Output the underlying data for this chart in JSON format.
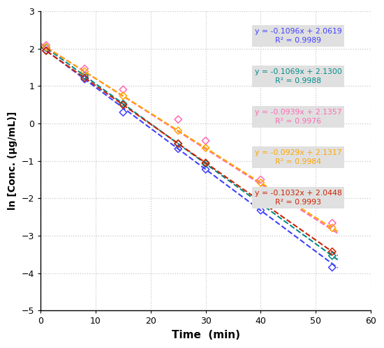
{
  "series": [
    {
      "slope": -0.1096,
      "intercept": 2.0619,
      "color": "#4040FF",
      "x_points": [
        1,
        8,
        15,
        25,
        30,
        40,
        53
      ],
      "y_offsets": [
        0.0,
        0.0,
        -0.12,
        0.0,
        0.0,
        0.0,
        -0.1
      ]
    },
    {
      "slope": -0.1069,
      "intercept": 2.13,
      "color": "#008B8B",
      "x_points": [
        1,
        8,
        15,
        25,
        30,
        40,
        53
      ],
      "y_offsets": [
        0.0,
        0.0,
        0.0,
        0.0,
        0.0,
        0.0,
        0.0
      ]
    },
    {
      "slope": -0.0939,
      "intercept": 2.1357,
      "color": "#FF69B4",
      "x_points": [
        1,
        8,
        15,
        25,
        30,
        40,
        53
      ],
      "y_offsets": [
        0.05,
        0.1,
        0.2,
        0.35,
        0.25,
        0.15,
        0.2
      ]
    },
    {
      "slope": -0.0929,
      "intercept": 2.1317,
      "color": "#FFA500",
      "x_points": [
        1,
        8,
        15,
        25,
        30,
        40,
        53
      ],
      "y_offsets": [
        0.0,
        0.0,
        0.0,
        0.0,
        0.0,
        0.0,
        0.0
      ]
    },
    {
      "slope": -0.1032,
      "intercept": 2.0448,
      "color": "#CC2200",
      "x_points": [
        1,
        8,
        15,
        25,
        30,
        40,
        53
      ],
      "y_offsets": [
        0.0,
        0.0,
        0.0,
        0.0,
        0.0,
        0.0,
        0.0
      ]
    }
  ],
  "xlabel": "Time  (min)",
  "ylabel": "ln [Conc. (µg/mL)]",
  "xlim": [
    0,
    60
  ],
  "ylim": [
    -5,
    3
  ],
  "xticks": [
    0,
    10,
    20,
    30,
    40,
    50,
    60
  ],
  "yticks": [
    -5,
    -4,
    -3,
    -2,
    -1,
    0,
    1,
    2,
    3
  ],
  "grid_color": "#C8C8C8",
  "bg_color": "#FFFFFF",
  "legend_bg": "#E0E0E0",
  "legend_texts": [
    "y = -0.1096x + 2.0619\nR² = 0.9989",
    "y = -0.1069x + 2.1300\nR² = 0.9988",
    "y = -0.0939x + 2.1357\nR² = 0.9976",
    "y = -0.0929x + 2.1317\nR² = 0.9984",
    "y = -0.1032x + 2.0448\nR² = 0.9993"
  ],
  "legend_colors": [
    "#4040FF",
    "#008B8B",
    "#FF69B4",
    "#FFA500",
    "#CC2200"
  ]
}
